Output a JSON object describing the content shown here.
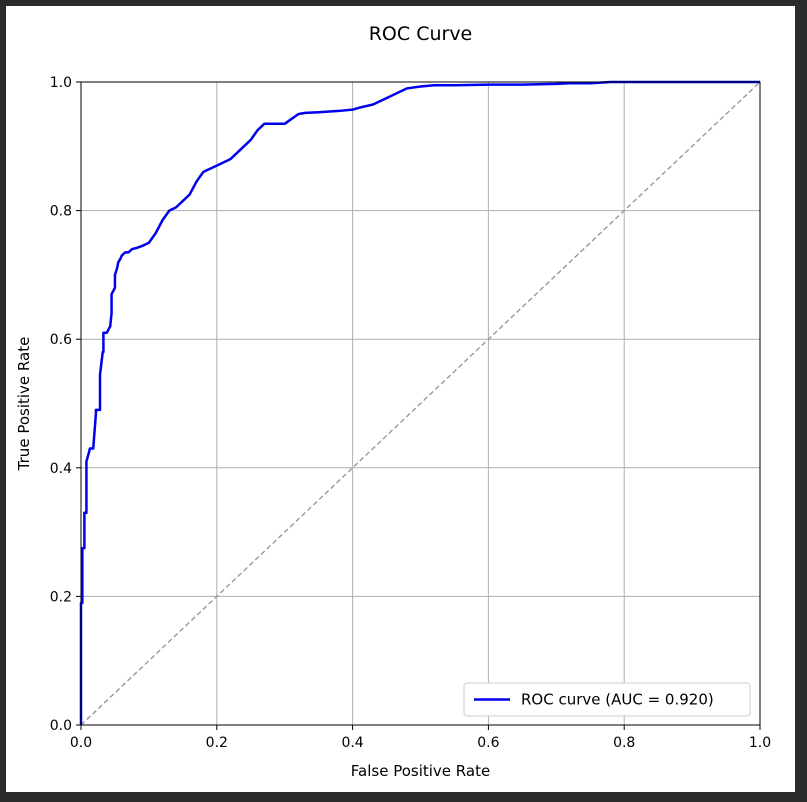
{
  "chart_data": {
    "type": "line",
    "title": "ROC Curve",
    "xlabel": "False Positive Rate",
    "ylabel": "True Positive Rate",
    "xlim": [
      0.0,
      1.0
    ],
    "ylim": [
      0.0,
      1.0
    ],
    "grid": true,
    "legend_position": "lower-right",
    "x_ticks": [
      "0.0",
      "0.2",
      "0.4",
      "0.6",
      "0.8",
      "1.0"
    ],
    "y_ticks": [
      "0.0",
      "0.2",
      "0.4",
      "0.6",
      "0.8",
      "1.0"
    ],
    "colors": {
      "roc": "#0000ee",
      "baseline": "#999999",
      "grid": "#b0b0b0"
    },
    "series": [
      {
        "name": "ROC curve (AUC = 0.920)",
        "style": "solid",
        "x": [
          0.0,
          0.0,
          0.002,
          0.002,
          0.005,
          0.005,
          0.008,
          0.008,
          0.012,
          0.013,
          0.018,
          0.022,
          0.022,
          0.028,
          0.028,
          0.032,
          0.033,
          0.033,
          0.038,
          0.043,
          0.045,
          0.045,
          0.05,
          0.05,
          0.053,
          0.055,
          0.058,
          0.06,
          0.065,
          0.07,
          0.075,
          0.082,
          0.09,
          0.1,
          0.11,
          0.12,
          0.13,
          0.14,
          0.15,
          0.16,
          0.17,
          0.18,
          0.19,
          0.2,
          0.21,
          0.22,
          0.24,
          0.25,
          0.26,
          0.27,
          0.28,
          0.3,
          0.32,
          0.33,
          0.35,
          0.38,
          0.4,
          0.41,
          0.43,
          0.45,
          0.47,
          0.48,
          0.5,
          0.52,
          0.55,
          0.6,
          0.65,
          0.7,
          0.72,
          0.75,
          0.78,
          0.8,
          0.85,
          0.9,
          0.95,
          1.0
        ],
        "y": [
          0.0,
          0.19,
          0.19,
          0.275,
          0.275,
          0.33,
          0.33,
          0.41,
          0.425,
          0.43,
          0.43,
          0.485,
          0.49,
          0.49,
          0.545,
          0.58,
          0.58,
          0.61,
          0.61,
          0.62,
          0.64,
          0.67,
          0.68,
          0.7,
          0.71,
          0.72,
          0.725,
          0.73,
          0.735,
          0.735,
          0.74,
          0.742,
          0.745,
          0.75,
          0.765,
          0.785,
          0.8,
          0.805,
          0.815,
          0.825,
          0.845,
          0.86,
          0.865,
          0.87,
          0.875,
          0.88,
          0.9,
          0.91,
          0.925,
          0.935,
          0.935,
          0.935,
          0.95,
          0.952,
          0.953,
          0.955,
          0.957,
          0.96,
          0.965,
          0.975,
          0.985,
          0.99,
          0.993,
          0.995,
          0.995,
          0.996,
          0.996,
          0.997,
          0.998,
          0.998,
          1.0,
          1.0,
          1.0,
          1.0,
          1.0,
          1.0
        ]
      },
      {
        "name": "",
        "style": "dashed",
        "x": [
          0.0,
          1.0
        ],
        "y": [
          0.0,
          1.0
        ]
      }
    ]
  }
}
